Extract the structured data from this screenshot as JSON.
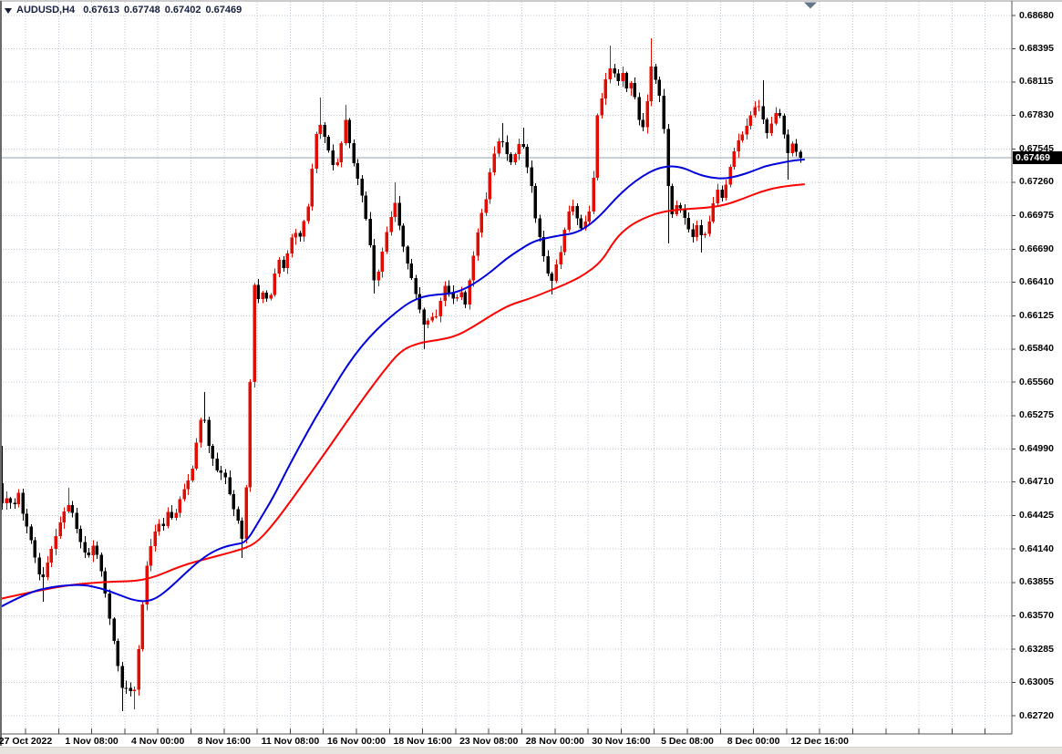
{
  "title": {
    "symbol": "AUDUSD,H4",
    "open": "0.67613",
    "high": "0.67748",
    "low": "0.67402",
    "close": "0.67469"
  },
  "icons": {
    "symbol_dropdown": "triangle-down",
    "chart_shift_marker": "triangle-down"
  },
  "price_axis": {
    "current_label": "0.67469",
    "labels": [
      "0.68680",
      "0.68395",
      "0.68115",
      "0.67830",
      "0.67545",
      "0.67260",
      "0.66975",
      "0.66690",
      "0.66410",
      "0.66125",
      "0.65840",
      "0.65560",
      "0.65275",
      "0.64990",
      "0.64710",
      "0.64425",
      "0.64140",
      "0.63855",
      "0.63570",
      "0.63285",
      "0.63005",
      "0.62720"
    ]
  },
  "time_axis": {
    "labels": [
      "27 Oct 2022",
      "1 Nov 08:00",
      "4 Nov 00:00",
      "8 Nov 16:00",
      "11 Nov 08:00",
      "16 Nov 00:00",
      "18 Nov 16:00",
      "23 Nov 08:00",
      "28 Nov 00:00",
      "30 Nov 16:00",
      "5 Dec 08:00",
      "8 Dec 00:00",
      "12 Dec 16:00"
    ]
  },
  "chart_data": {
    "type": "candlestick",
    "title": "AUDUSD,H4",
    "symbol": "AUDUSD",
    "timeframe": "H4",
    "ohlc_display": {
      "open": 0.67613,
      "high": 0.67748,
      "low": 0.67402,
      "close": 0.67469
    },
    "current_price": 0.67469,
    "ylim": [
      0.62604,
      0.68815
    ],
    "x_range_labels": [
      "27 Oct 2022",
      "12 Dec 16:00"
    ],
    "grid": "dotted",
    "legend": "none",
    "close_path_anchors": [
      [
        2,
        0.64528
      ],
      [
        8,
        0.64583
      ],
      [
        14,
        0.64482
      ],
      [
        20,
        0.64622
      ],
      [
        25,
        0.64428
      ],
      [
        30,
        0.64311
      ],
      [
        36,
        0.64156
      ],
      [
        41,
        0.63962
      ],
      [
        46,
        0.63861
      ],
      [
        51,
        0.64001
      ],
      [
        57,
        0.64156
      ],
      [
        62,
        0.64272
      ],
      [
        68,
        0.64428
      ],
      [
        74,
        0.64521
      ],
      [
        79,
        0.64451
      ],
      [
        85,
        0.64272
      ],
      [
        91,
        0.64133
      ],
      [
        96,
        0.64063
      ],
      [
        102,
        0.64171
      ],
      [
        107,
        0.64078
      ],
      [
        113,
        0.63884
      ],
      [
        118,
        0.63628
      ],
      [
        124,
        0.6338
      ],
      [
        129,
        0.63147
      ],
      [
        135,
        0.62899
      ],
      [
        140,
        0.62992
      ],
      [
        146,
        0.62852
      ],
      [
        151,
        0.63225
      ],
      [
        157,
        0.63729
      ],
      [
        162,
        0.64078
      ],
      [
        168,
        0.64234
      ],
      [
        173,
        0.64373
      ],
      [
        178,
        0.64311
      ],
      [
        184,
        0.64466
      ],
      [
        190,
        0.64373
      ],
      [
        196,
        0.64544
      ],
      [
        201,
        0.64637
      ],
      [
        207,
        0.64738
      ],
      [
        212,
        0.64854
      ],
      [
        218,
        0.65204
      ],
      [
        223,
        0.65304
      ],
      [
        229,
        0.6501
      ],
      [
        234,
        0.64893
      ],
      [
        240,
        0.64761
      ],
      [
        245,
        0.64816
      ],
      [
        251,
        0.64622
      ],
      [
        256,
        0.64482
      ],
      [
        262,
        0.6435
      ],
      [
        267,
        0.64156
      ],
      [
        273,
        0.65281
      ],
      [
        278,
        0.66406
      ],
      [
        284,
        0.66251
      ],
      [
        289,
        0.66344
      ],
      [
        295,
        0.66212
      ],
      [
        300,
        0.66445
      ],
      [
        306,
        0.666
      ],
      [
        311,
        0.66523
      ],
      [
        317,
        0.66717
      ],
      [
        322,
        0.66856
      ],
      [
        328,
        0.66779
      ],
      [
        334,
        0.6695
      ],
      [
        339,
        0.67089
      ],
      [
        345,
        0.67609
      ],
      [
        350,
        0.6778
      ],
      [
        356,
        0.67648
      ],
      [
        362,
        0.67493
      ],
      [
        367,
        0.67353
      ],
      [
        373,
        0.67532
      ],
      [
        378,
        0.67819
      ],
      [
        384,
        0.67555
      ],
      [
        389,
        0.67376
      ],
      [
        395,
        0.67221
      ],
      [
        400,
        0.67012
      ],
      [
        406,
        0.66717
      ],
      [
        411,
        0.66383
      ],
      [
        417,
        0.66562
      ],
      [
        422,
        0.66779
      ],
      [
        428,
        0.6695
      ],
      [
        433,
        0.67089
      ],
      [
        439,
        0.66833
      ],
      [
        444,
        0.66639
      ],
      [
        450,
        0.66484
      ],
      [
        455,
        0.66329
      ],
      [
        461,
        0.66158
      ],
      [
        466,
        0.66018
      ],
      [
        472,
        0.66135
      ],
      [
        477,
        0.6608
      ],
      [
        483,
        0.66251
      ],
      [
        488,
        0.66391
      ],
      [
        494,
        0.6629
      ],
      [
        499,
        0.66251
      ],
      [
        505,
        0.66344
      ],
      [
        510,
        0.66212
      ],
      [
        516,
        0.66484
      ],
      [
        521,
        0.66717
      ],
      [
        527,
        0.66965
      ],
      [
        533,
        0.6712
      ],
      [
        538,
        0.67376
      ],
      [
        544,
        0.6757
      ],
      [
        549,
        0.67648
      ],
      [
        555,
        0.67508
      ],
      [
        561,
        0.67415
      ],
      [
        566,
        0.67532
      ],
      [
        572,
        0.67632
      ],
      [
        577,
        0.67431
      ],
      [
        583,
        0.67221
      ],
      [
        588,
        0.66911
      ],
      [
        594,
        0.66732
      ],
      [
        599,
        0.66523
      ],
      [
        605,
        0.66406
      ],
      [
        610,
        0.66562
      ],
      [
        616,
        0.66701
      ],
      [
        621,
        0.6695
      ],
      [
        627,
        0.67089
      ],
      [
        632,
        0.66965
      ],
      [
        638,
        0.66856
      ],
      [
        644,
        0.66965
      ],
      [
        649,
        0.67066
      ],
      [
        655,
        0.67819
      ],
      [
        660,
        0.67974
      ],
      [
        666,
        0.68191
      ],
      [
        671,
        0.68253
      ],
      [
        677,
        0.68098
      ],
      [
        682,
        0.68207
      ],
      [
        688,
        0.68036
      ],
      [
        693,
        0.68129
      ],
      [
        699,
        0.67865
      ],
      [
        704,
        0.67663
      ],
      [
        710,
        0.67958
      ],
      [
        715,
        0.68284
      ],
      [
        721,
        0.68051
      ],
      [
        726,
        0.67943
      ],
      [
        732,
        0.6726
      ],
      [
        737,
        0.66988
      ],
      [
        743,
        0.67089
      ],
      [
        748,
        0.67012
      ],
      [
        754,
        0.66887
      ],
      [
        759,
        0.66779
      ],
      [
        765,
        0.66911
      ],
      [
        770,
        0.66779
      ],
      [
        776,
        0.66856
      ],
      [
        781,
        0.67043
      ],
      [
        787,
        0.67198
      ],
      [
        792,
        0.6712
      ],
      [
        798,
        0.67299
      ],
      [
        803,
        0.67477
      ],
      [
        809,
        0.67609
      ],
      [
        814,
        0.67663
      ],
      [
        820,
        0.67764
      ],
      [
        825,
        0.67865
      ],
      [
        831,
        0.67943
      ],
      [
        836,
        0.67819
      ],
      [
        842,
        0.67663
      ],
      [
        847,
        0.67788
      ],
      [
        853,
        0.67896
      ],
      [
        858,
        0.67726
      ],
      [
        864,
        0.67508
      ],
      [
        869,
        0.67594
      ],
      [
        876,
        0.67469
      ]
    ],
    "wick_extremes": [
      [
        2,
        "h",
        0.65017
      ],
      [
        46,
        "l",
        0.6369
      ],
      [
        74,
        "h",
        0.6466
      ],
      [
        135,
        "l",
        0.62759
      ],
      [
        146,
        "l",
        0.62775
      ],
      [
        223,
        "h",
        0.65475
      ],
      [
        267,
        "l",
        0.64063
      ],
      [
        350,
        "h",
        0.67982
      ],
      [
        378,
        "h",
        0.6792
      ],
      [
        411,
        "l",
        0.66313
      ],
      [
        433,
        "h",
        0.6726
      ],
      [
        466,
        "l",
        0.6584
      ],
      [
        549,
        "h",
        0.67764
      ],
      [
        572,
        "h",
        0.67726
      ],
      [
        605,
        "l",
        0.66305
      ],
      [
        671,
        "h",
        0.68424
      ],
      [
        715,
        "h",
        0.68486
      ],
      [
        732,
        "l",
        0.6674
      ],
      [
        770,
        "l",
        0.66662
      ],
      [
        836,
        "h",
        0.68129
      ],
      [
        864,
        "l",
        0.67283
      ]
    ],
    "ma_fast_blue": [
      [
        0,
        0.63644
      ],
      [
        30,
        0.63768
      ],
      [
        60,
        0.63822
      ],
      [
        90,
        0.63838
      ],
      [
        110,
        0.63807
      ],
      [
        130,
        0.63752
      ],
      [
        145,
        0.63706
      ],
      [
        160,
        0.6369
      ],
      [
        172,
        0.63721
      ],
      [
        185,
        0.63799
      ],
      [
        200,
        0.63908
      ],
      [
        215,
        0.64016
      ],
      [
        230,
        0.64102
      ],
      [
        245,
        0.64156
      ],
      [
        258,
        0.64179
      ],
      [
        270,
        0.64195
      ],
      [
        285,
        0.64389
      ],
      [
        300,
        0.64583
      ],
      [
        315,
        0.64816
      ],
      [
        330,
        0.65033
      ],
      [
        345,
        0.65242
      ],
      [
        360,
        0.65436
      ],
      [
        375,
        0.6563
      ],
      [
        390,
        0.65801
      ],
      [
        405,
        0.65941
      ],
      [
        420,
        0.66057
      ],
      [
        435,
        0.66158
      ],
      [
        450,
        0.66243
      ],
      [
        465,
        0.6629
      ],
      [
        480,
        0.66305
      ],
      [
        495,
        0.66313
      ],
      [
        510,
        0.66352
      ],
      [
        525,
        0.66422
      ],
      [
        540,
        0.66507
      ],
      [
        555,
        0.66608
      ],
      [
        570,
        0.66686
      ],
      [
        585,
        0.66756
      ],
      [
        600,
        0.66787
      ],
      [
        615,
        0.6681
      ],
      [
        630,
        0.66825
      ],
      [
        645,
        0.66887
      ],
      [
        660,
        0.66988
      ],
      [
        675,
        0.6712
      ],
      [
        690,
        0.67229
      ],
      [
        705,
        0.67314
      ],
      [
        720,
        0.67376
      ],
      [
        735,
        0.674
      ],
      [
        750,
        0.67384
      ],
      [
        765,
        0.6733
      ],
      [
        780,
        0.67299
      ],
      [
        795,
        0.67291
      ],
      [
        810,
        0.67314
      ],
      [
        825,
        0.67353
      ],
      [
        840,
        0.674
      ],
      [
        855,
        0.67423
      ],
      [
        870,
        0.67446
      ],
      [
        882,
        0.67454
      ]
    ],
    "ma_slow_red": [
      [
        0,
        0.63714
      ],
      [
        40,
        0.63783
      ],
      [
        80,
        0.63838
      ],
      [
        120,
        0.63861
      ],
      [
        160,
        0.63869
      ],
      [
        200,
        0.64001
      ],
      [
        230,
        0.64063
      ],
      [
        260,
        0.64125
      ],
      [
        280,
        0.64179
      ],
      [
        300,
        0.6435
      ],
      [
        320,
        0.64559
      ],
      [
        340,
        0.64777
      ],
      [
        360,
        0.64994
      ],
      [
        380,
        0.65219
      ],
      [
        400,
        0.65436
      ],
      [
        420,
        0.65646
      ],
      [
        440,
        0.65832
      ],
      [
        460,
        0.65894
      ],
      [
        480,
        0.65917
      ],
      [
        500,
        0.65949
      ],
      [
        520,
        0.66034
      ],
      [
        540,
        0.66135
      ],
      [
        560,
        0.6622
      ],
      [
        580,
        0.66267
      ],
      [
        600,
        0.66329
      ],
      [
        620,
        0.66391
      ],
      [
        640,
        0.66468
      ],
      [
        660,
        0.66585
      ],
      [
        675,
        0.66779
      ],
      [
        690,
        0.66887
      ],
      [
        705,
        0.6695
      ],
      [
        720,
        0.66996
      ],
      [
        735,
        0.67019
      ],
      [
        755,
        0.67035
      ],
      [
        775,
        0.67043
      ],
      [
        795,
        0.67066
      ],
      [
        815,
        0.6712
      ],
      [
        835,
        0.67182
      ],
      [
        855,
        0.67221
      ],
      [
        882,
        0.67244
      ]
    ],
    "colors": {
      "up": "#e60b00",
      "down": "#000000",
      "ma_fast": "#0000dd",
      "ma_slow": "#ff0000",
      "grid": "#bcc7d5",
      "current_price_line": "#8fa0ae",
      "axis_text": "#000000",
      "title_text": "#17203e",
      "tag_bg": "#000000",
      "tag_text": "#ffffff",
      "shift_marker": "#64768a"
    }
  }
}
